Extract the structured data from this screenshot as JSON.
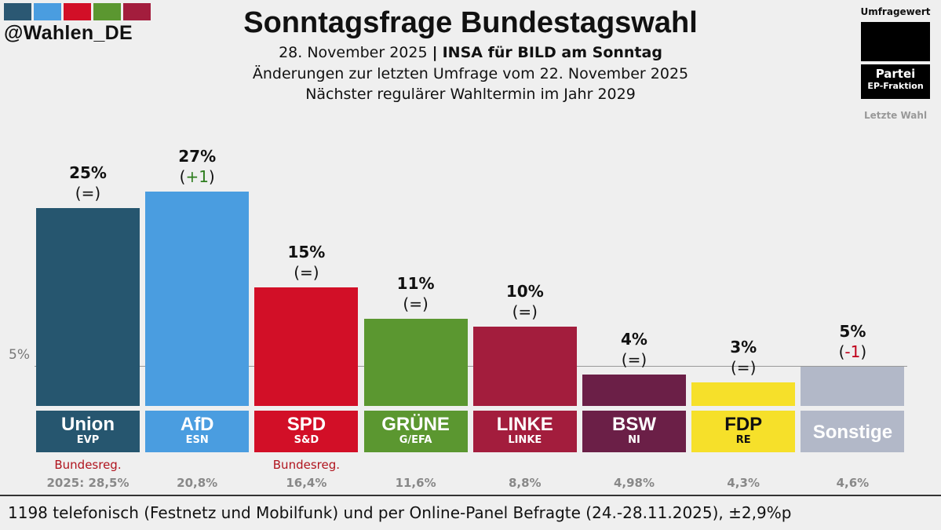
{
  "brand": {
    "handle": "@Wahlen_DE",
    "colors": [
      "#2b5873",
      "#4a9de0",
      "#d20f27",
      "#5b9730",
      "#a31d3d"
    ]
  },
  "header": {
    "title": "Sonntagsfrage Bundestagswahl",
    "date": "28. November 2025",
    "separator": "|",
    "institute": "INSA für BILD am Sonntag",
    "changes_note": "Änderungen zur letzten Umfrage vom 22. November 2025",
    "next_election": "Nächster regulärer Wahltermin im Jahr 2029"
  },
  "legend": {
    "poll_value_label": "Umfragewert",
    "party_label": "Partei",
    "ep_label": "EP-Fraktion",
    "last_election_label": "Letzte Wahl"
  },
  "reference_line": {
    "label": "5%",
    "value": 5
  },
  "chart_data": {
    "type": "bar",
    "title": "Sonntagsfrage Bundestagswahl",
    "categories": [
      "Union",
      "AfD",
      "SPD",
      "GRÜNE",
      "LINKE",
      "BSW",
      "FDP",
      "Sonstige"
    ],
    "values": [
      25,
      27,
      15,
      11,
      10,
      4,
      3,
      5
    ],
    "value_labels": [
      "25%",
      "27%",
      "15%",
      "11%",
      "10%",
      "4%",
      "3%",
      "5%"
    ],
    "changes": [
      "=",
      "+1",
      "=",
      "=",
      "=",
      "=",
      "=",
      "-1"
    ],
    "ep_groups": [
      "EVP",
      "ESN",
      "S&D",
      "G/EFA",
      "LINKE",
      "NI",
      "RE",
      ""
    ],
    "government": [
      "Bundesreg.",
      "",
      "Bundesreg.",
      "",
      "",
      "",
      "",
      ""
    ],
    "last_election": [
      "2025: 28,5%",
      "20,8%",
      "16,4%",
      "11,6%",
      "8,8%",
      "4,98%",
      "4,3%",
      "4,6%"
    ],
    "colors": [
      "#26566f",
      "#4a9de0",
      "#d20f27",
      "#5b9730",
      "#a31d3d",
      "#6b1f47",
      "#f6e02a",
      "#b2b8c8"
    ],
    "text_colors": [
      "#ffffff",
      "#ffffff",
      "#ffffff",
      "#ffffff",
      "#ffffff",
      "#ffffff",
      "#111111",
      "#ffffff"
    ],
    "ylim": [
      0,
      27
    ],
    "grid": false
  },
  "footer": {
    "text": "1198 telefonisch (Festnetz und Mobilfunk) und per Online-Panel Befragte (24.-28.11.2025), ±2,9%p"
  }
}
